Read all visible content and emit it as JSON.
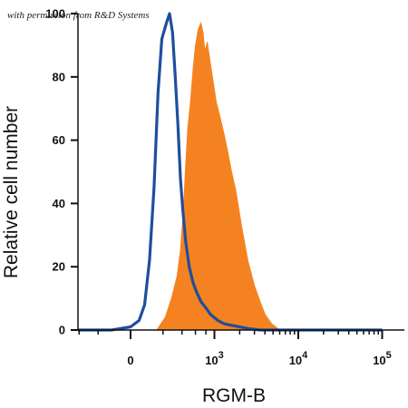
{
  "chart_data": {
    "type": "area",
    "credit": "with permission from R&D Systems",
    "xlabel": "RGM-B",
    "ylabel": "Relative cell number",
    "x_scale": "biexponential",
    "xlim": [
      -1000,
      200000
    ],
    "ylim": [
      0,
      100
    ],
    "y_ticks": [
      "0",
      "20",
      "40",
      "60",
      "80",
      "100"
    ],
    "x_ticks": [
      {
        "value": 0,
        "label": "0"
      },
      {
        "value": 1000,
        "label": "10",
        "exp": "3"
      },
      {
        "value": 10000,
        "label": "10",
        "exp": "4"
      },
      {
        "value": 100000,
        "label": "10",
        "exp": "5"
      }
    ],
    "colors": {
      "filled": "#F58220",
      "outline": "#1F4E9C",
      "axis": "#111111"
    },
    "series": [
      {
        "style": "filled",
        "x": [
          -800,
          150,
          220,
          280,
          340,
          380,
          420,
          450,
          480,
          520,
          560,
          600,
          650,
          700,
          740,
          780,
          830,
          880,
          950,
          1050,
          1150,
          1300,
          1450,
          1600,
          1800,
          2100,
          2500,
          3000,
          3500,
          4000,
          4800,
          6000,
          100000
        ],
        "values": [
          0,
          0,
          4,
          10,
          17,
          25,
          38,
          52,
          64,
          72,
          82,
          90,
          95,
          97,
          94,
          88,
          91,
          86,
          80,
          72,
          68,
          62,
          56,
          50,
          44,
          33,
          22,
          14,
          9,
          5,
          2,
          0,
          0
        ]
      },
      {
        "style": "outline",
        "x": [
          -800,
          -100,
          0,
          40,
          70,
          100,
          130,
          160,
          190,
          230,
          260,
          290,
          320,
          350,
          380,
          410,
          450,
          500,
          560,
          620,
          700,
          800,
          900,
          1100,
          1300,
          1600,
          2000,
          2500,
          3500,
          100000
        ],
        "values": [
          0,
          0,
          1,
          3,
          8,
          22,
          45,
          75,
          92,
          97,
          100,
          94,
          80,
          65,
          48,
          38,
          28,
          20,
          15,
          12,
          9,
          7,
          5,
          3,
          2,
          1.5,
          1,
          0.5,
          0,
          0
        ]
      }
    ]
  }
}
